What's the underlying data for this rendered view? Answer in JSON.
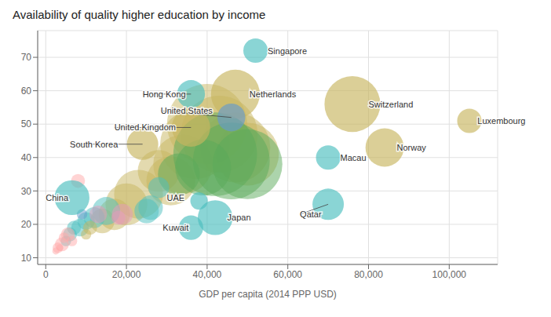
{
  "chart_data": {
    "type": "bubble",
    "title": "Availability of quality higher education by income",
    "xlabel": "GDP per capita (2014 PPP USD)",
    "xlim": [
      -2000,
      112000
    ],
    "ylim": [
      8,
      78
    ],
    "xticks": [
      0,
      {
        "value": 20000,
        "label": "20,000"
      },
      {
        "value": 40000,
        "label": "40,000"
      },
      {
        "value": 60000,
        "label": "60,000"
      },
      {
        "value": 80000,
        "label": "80,000"
      },
      {
        "value": 100000,
        "label": "100,000"
      }
    ],
    "yticks": [
      10,
      20,
      30,
      40,
      50,
      60,
      70
    ],
    "grid": true,
    "background_bubbles": [
      {
        "x": 28000,
        "y": 36,
        "size": 12,
        "color": "#c8b560"
      },
      {
        "x": 31000,
        "y": 33,
        "size": 14,
        "color": "#c8b560"
      },
      {
        "x": 34000,
        "y": 38,
        "size": 17,
        "color": "#c8b560"
      },
      {
        "x": 37000,
        "y": 44,
        "size": 20,
        "color": "#c8b560"
      },
      {
        "x": 40000,
        "y": 50,
        "size": 23,
        "color": "#c8b560"
      },
      {
        "x": 43000,
        "y": 47,
        "size": 22,
        "color": "#c8b560"
      },
      {
        "x": 47000,
        "y": 43,
        "size": 20,
        "color": "#c8b560"
      },
      {
        "x": 50000,
        "y": 41,
        "size": 18,
        "color": "#c8b560"
      },
      {
        "x": 42000,
        "y": 41,
        "size": 24,
        "color": "#5aaa5a"
      },
      {
        "x": 46000,
        "y": 39,
        "size": 22,
        "color": "#5aaa5a"
      },
      {
        "x": 50000,
        "y": 38,
        "size": 20,
        "color": "#5aaa5a"
      },
      {
        "x": 39000,
        "y": 37,
        "size": 16,
        "color": "#5aaa5a"
      },
      {
        "x": 33000,
        "y": 35,
        "size": 12,
        "color": "#5aaa5a"
      },
      {
        "x": 23000,
        "y": 29,
        "size": 14,
        "color": "#c8b560"
      },
      {
        "x": 20000,
        "y": 26,
        "size": 12,
        "color": "#c8b560"
      },
      {
        "x": 17000,
        "y": 23,
        "size": 9,
        "color": "#c8b560"
      },
      {
        "x": 14000,
        "y": 21,
        "size": 7,
        "color": "#c8b560"
      },
      {
        "x": 25000,
        "y": 24,
        "size": 7,
        "color": "#4bbfbf"
      },
      {
        "x": 15000,
        "y": 24,
        "size": 8,
        "color": "#4bbfbf"
      },
      {
        "x": 12000,
        "y": 22,
        "size": 6,
        "color": "#4bbfbf"
      },
      {
        "x": 8500,
        "y": 19,
        "size": 5,
        "color": "#4bbfbf"
      },
      {
        "x": 6000,
        "y": 17,
        "size": 4,
        "color": "#4bbfbf"
      },
      {
        "x": 5000,
        "y": 15,
        "size": 3,
        "color": "#4bbfbf"
      },
      {
        "x": 7000,
        "y": 19,
        "size": 4,
        "color": "#4bbfbf"
      },
      {
        "x": 4000,
        "y": 14,
        "size": 4,
        "color": "#ffaaaa"
      },
      {
        "x": 5500,
        "y": 17,
        "size": 4,
        "color": "#ffaaaa"
      },
      {
        "x": 6500,
        "y": 15,
        "size": 3,
        "color": "#ffaaaa"
      },
      {
        "x": 3000,
        "y": 13,
        "size": 3,
        "color": "#ffaaaa"
      },
      {
        "x": 8000,
        "y": 33,
        "size": 4,
        "color": "#ffaaaa"
      },
      {
        "x": 10000,
        "y": 21,
        "size": 5,
        "color": "#4bbfbf"
      },
      {
        "x": 9000,
        "y": 23,
        "size": 3,
        "color": "#6699cc"
      },
      {
        "x": 13000,
        "y": 23,
        "size": 5,
        "color": "#e599bb"
      },
      {
        "x": 19000,
        "y": 23,
        "size": 6,
        "color": "#e599bb"
      },
      {
        "x": 18000,
        "y": 22,
        "size": 4,
        "color": "#e599bb"
      },
      {
        "x": 28000,
        "y": 31,
        "size": 6,
        "color": "#4bbfbf"
      },
      {
        "x": 26000,
        "y": 25,
        "size": 7,
        "color": "#4bbfbf"
      },
      {
        "x": 11000,
        "y": 19,
        "size": 4,
        "color": "#c8b560"
      },
      {
        "x": 10000,
        "y": 17,
        "size": 3,
        "color": "#c8b560"
      },
      {
        "x": 3500,
        "y": 13,
        "size": 2,
        "color": "#ffaaaa"
      },
      {
        "x": 2500,
        "y": 12,
        "size": 2,
        "color": "#ffaaaa"
      },
      {
        "x": 4500,
        "y": 16,
        "size": 3,
        "color": "#ffaaaa"
      }
    ],
    "bubbles": [
      {
        "x": 52000,
        "y": 72,
        "size": 7,
        "color": "#4bbfbf"
      },
      {
        "x": 47000,
        "y": 59,
        "size": 14,
        "color": "#c8b560"
      },
      {
        "x": 36000,
        "y": 59,
        "size": 8,
        "color": "#4bbfbf"
      },
      {
        "x": 46000,
        "y": 52,
        "size": 8,
        "color": "#6699cc"
      },
      {
        "x": 76000,
        "y": 56,
        "size": 16,
        "color": "#c8b560"
      },
      {
        "x": 36000,
        "y": 49,
        "size": 11,
        "color": "#c8b560"
      },
      {
        "x": 24000,
        "y": 44,
        "size": 9,
        "color": "#c8b560"
      },
      {
        "x": 105000,
        "y": 51,
        "size": 7,
        "color": "#c8b560"
      },
      {
        "x": 84000,
        "y": 43,
        "size": 11,
        "color": "#c8b560"
      },
      {
        "x": 70000,
        "y": 40,
        "size": 7,
        "color": "#4bbfbf"
      },
      {
        "x": 42000,
        "y": 22,
        "size": 10,
        "color": "#4bbfbf"
      },
      {
        "x": 36000,
        "y": 19,
        "size": 7,
        "color": "#4bbfbf"
      },
      {
        "x": 38000,
        "y": 27,
        "size": 5,
        "color": "#4bbfbf"
      },
      {
        "x": 70000,
        "y": 26,
        "size": 9,
        "color": "#4bbfbf"
      },
      {
        "x": 6500,
        "y": 28,
        "size": 10,
        "color": "#4bbfbf"
      }
    ],
    "annotations": [
      {
        "text": "Singapore",
        "x": 52000,
        "y": 72,
        "text_x": 55000,
        "text_y": 72,
        "arrow": false
      },
      {
        "text": "Netherlands",
        "x": 47000,
        "y": 59,
        "text_x": 50500,
        "text_y": 59,
        "arrow": false
      },
      {
        "text": "Hong Kong",
        "x": 36000,
        "y": 59,
        "text_x": 24000,
        "text_y": 59,
        "arrow": true
      },
      {
        "text": "United States",
        "x": 46000,
        "y": 52,
        "text_x": 28500,
        "text_y": 54,
        "arrow": true
      },
      {
        "text": "Switzerland",
        "x": 76000,
        "y": 56,
        "text_x": 80000,
        "text_y": 56,
        "arrow": false
      },
      {
        "text": "United Kingdom",
        "x": 36000,
        "y": 49,
        "text_x": 17000,
        "text_y": 49,
        "arrow": true
      },
      {
        "text": "South Korea",
        "x": 24000,
        "y": 44,
        "text_x": 6000,
        "text_y": 44,
        "arrow": true
      },
      {
        "text": "Luxembourg",
        "x": 105000,
        "y": 51,
        "text_x": 107000,
        "text_y": 51,
        "arrow": false
      },
      {
        "text": "Norway",
        "x": 84000,
        "y": 43,
        "text_x": 87000,
        "text_y": 43,
        "arrow": false
      },
      {
        "text": "Macau",
        "x": 70000,
        "y": 40,
        "text_x": 73000,
        "text_y": 40,
        "arrow": false
      },
      {
        "text": "Japan",
        "x": 42000,
        "y": 22,
        "text_x": 45000,
        "text_y": 22,
        "arrow": false
      },
      {
        "text": "Kuwait",
        "x": 36000,
        "y": 19,
        "text_x": 29000,
        "text_y": 19,
        "arrow": false
      },
      {
        "text": "UAE",
        "x": 38000,
        "y": 27,
        "text_x": 30000,
        "text_y": 28,
        "arrow": false
      },
      {
        "text": "Qatar",
        "x": 70000,
        "y": 26,
        "text_x": 63000,
        "text_y": 23,
        "arrow": true
      },
      {
        "text": "China",
        "x": 6500,
        "y": 28,
        "text_x": 0,
        "text_y": 28,
        "arrow": false
      }
    ]
  }
}
